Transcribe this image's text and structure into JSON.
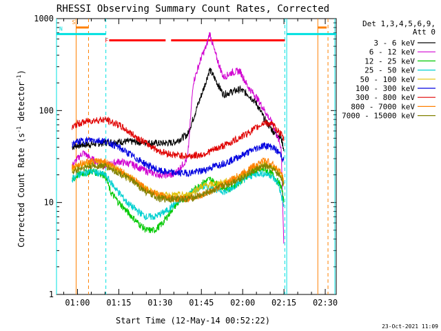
{
  "chart_data": {
    "type": "line",
    "title": "RHESSI Observing Summary Count Rates, Corrected",
    "xlabel": "Start Time (12-May-14 00:52:22)",
    "ylabel": "Corrected Count Rate (s",
    "ylabel_sup1": "-1",
    "ylabel_mid": " detector",
    "ylabel_sup2": "-1",
    "ylabel_end": ")",
    "y_scale": "log",
    "ylim": [
      1,
      1000
    ],
    "xlim_min": [
      52.37,
      154
    ],
    "x_tick_minutes": [
      60,
      75,
      90,
      105,
      120,
      135,
      150
    ],
    "x_tick_labels": [
      "01:00",
      "01:15",
      "01:30",
      "01:45",
      "02:00",
      "02:15",
      "02:30"
    ],
    "y_tick_values": [
      1,
      10,
      100,
      1000
    ],
    "y_tick_labels": [
      "1",
      "10",
      "100",
      "1000"
    ],
    "legend_header": [
      "Det 1,3,4,5,6,9,",
      "Att 0"
    ],
    "legend_placement": "right-outside",
    "series": [
      {
        "name": "3 - 6 keV",
        "color": "#000000",
        "points": [
          [
            58,
            40
          ],
          [
            60,
            42
          ],
          [
            65,
            43
          ],
          [
            70,
            45
          ],
          [
            75,
            46
          ],
          [
            80,
            46
          ],
          [
            85,
            45
          ],
          [
            90,
            44
          ],
          [
            95,
            45
          ],
          [
            100,
            55
          ],
          [
            103,
            100
          ],
          [
            106,
            180
          ],
          [
            108,
            280
          ],
          [
            110,
            220
          ],
          [
            113,
            150
          ],
          [
            116,
            160
          ],
          [
            119,
            170
          ],
          [
            122,
            150
          ],
          [
            125,
            120
          ],
          [
            128,
            80
          ],
          [
            131,
            60
          ],
          [
            134,
            50
          ],
          [
            135,
            38
          ]
        ]
      },
      {
        "name": "6 - 12 keV",
        "color": "#d000d0",
        "points": [
          [
            58,
            25
          ],
          [
            60,
            30
          ],
          [
            62,
            35
          ],
          [
            65,
            30
          ],
          [
            70,
            25
          ],
          [
            75,
            28
          ],
          [
            80,
            26
          ],
          [
            85,
            22
          ],
          [
            90,
            20
          ],
          [
            95,
            20
          ],
          [
            100,
            30
          ],
          [
            102,
            200
          ],
          [
            105,
            380
          ],
          [
            107,
            520
          ],
          [
            108,
            700
          ],
          [
            110,
            420
          ],
          [
            113,
            230
          ],
          [
            116,
            260
          ],
          [
            119,
            270
          ],
          [
            122,
            180
          ],
          [
            125,
            140
          ],
          [
            128,
            100
          ],
          [
            131,
            70
          ],
          [
            134,
            40
          ],
          [
            135,
            3
          ]
        ]
      },
      {
        "name": "12 - 25 keV",
        "color": "#00c800",
        "points": [
          [
            58,
            17
          ],
          [
            60,
            20
          ],
          [
            65,
            22
          ],
          [
            70,
            20
          ],
          [
            72,
            13
          ],
          [
            75,
            10
          ],
          [
            78,
            8
          ],
          [
            82,
            6
          ],
          [
            85,
            5
          ],
          [
            88,
            5
          ],
          [
            91,
            6
          ],
          [
            95,
            9
          ],
          [
            100,
            12
          ],
          [
            105,
            16
          ],
          [
            108,
            18
          ],
          [
            112,
            15
          ],
          [
            115,
            14
          ],
          [
            118,
            16
          ],
          [
            122,
            20
          ],
          [
            125,
            22
          ],
          [
            128,
            23
          ],
          [
            131,
            20
          ],
          [
            134,
            15
          ],
          [
            135,
            10
          ]
        ]
      },
      {
        "name": "25 - 50 keV",
        "color": "#00d0d0",
        "points": [
          [
            58,
            18
          ],
          [
            60,
            20
          ],
          [
            65,
            22
          ],
          [
            70,
            20
          ],
          [
            74,
            14
          ],
          [
            78,
            10
          ],
          [
            82,
            8
          ],
          [
            85,
            7
          ],
          [
            88,
            7
          ],
          [
            92,
            8
          ],
          [
            96,
            10
          ],
          [
            100,
            12
          ],
          [
            105,
            15
          ],
          [
            110,
            14
          ],
          [
            114,
            13
          ],
          [
            118,
            16
          ],
          [
            122,
            19
          ],
          [
            126,
            21
          ],
          [
            130,
            20
          ],
          [
            133,
            16
          ],
          [
            135,
            9
          ]
        ]
      },
      {
        "name": "50 - 100 keV",
        "color": "#e0c000",
        "points": [
          [
            58,
            22
          ],
          [
            60,
            25
          ],
          [
            65,
            27
          ],
          [
            70,
            27
          ],
          [
            75,
            22
          ],
          [
            80,
            18
          ],
          [
            85,
            14
          ],
          [
            90,
            12
          ],
          [
            95,
            12
          ],
          [
            100,
            12
          ],
          [
            105,
            15
          ],
          [
            110,
            16
          ],
          [
            115,
            17
          ],
          [
            120,
            20
          ],
          [
            125,
            24
          ],
          [
            128,
            26
          ],
          [
            131,
            24
          ],
          [
            134,
            20
          ],
          [
            135,
            16
          ]
        ]
      },
      {
        "name": "100 - 300 keV",
        "color": "#0000e0",
        "points": [
          [
            58,
            43
          ],
          [
            60,
            46
          ],
          [
            65,
            48
          ],
          [
            70,
            47
          ],
          [
            75,
            40
          ],
          [
            80,
            32
          ],
          [
            85,
            26
          ],
          [
            90,
            22
          ],
          [
            95,
            21
          ],
          [
            100,
            21
          ],
          [
            105,
            22
          ],
          [
            110,
            25
          ],
          [
            115,
            28
          ],
          [
            120,
            33
          ],
          [
            125,
            39
          ],
          [
            128,
            42
          ],
          [
            131,
            40
          ],
          [
            134,
            33
          ],
          [
            135,
            28
          ]
        ]
      },
      {
        "name": "300 - 800 keV",
        "color": "#e00000",
        "points": [
          [
            58,
            65
          ],
          [
            60,
            72
          ],
          [
            65,
            78
          ],
          [
            70,
            80
          ],
          [
            75,
            70
          ],
          [
            80,
            55
          ],
          [
            85,
            44
          ],
          [
            90,
            36
          ],
          [
            95,
            33
          ],
          [
            100,
            32
          ],
          [
            105,
            33
          ],
          [
            110,
            38
          ],
          [
            115,
            44
          ],
          [
            120,
            53
          ],
          [
            125,
            65
          ],
          [
            128,
            75
          ],
          [
            131,
            70
          ],
          [
            134,
            55
          ],
          [
            135,
            48
          ]
        ]
      },
      {
        "name": "800 - 7000 keV",
        "color": "#ff8000",
        "points": [
          [
            58,
            24
          ],
          [
            60,
            26
          ],
          [
            65,
            28
          ],
          [
            70,
            28
          ],
          [
            75,
            23
          ],
          [
            80,
            18
          ],
          [
            85,
            14
          ],
          [
            90,
            12
          ],
          [
            95,
            11
          ],
          [
            100,
            11
          ],
          [
            105,
            12
          ],
          [
            110,
            14
          ],
          [
            115,
            17
          ],
          [
            120,
            21
          ],
          [
            125,
            26
          ],
          [
            128,
            29
          ],
          [
            131,
            26
          ],
          [
            134,
            21
          ],
          [
            135,
            17
          ]
        ]
      },
      {
        "name": "7000 - 15000 keV",
        "color": "#808000",
        "points": [
          [
            58,
            21
          ],
          [
            60,
            23
          ],
          [
            65,
            25
          ],
          [
            70,
            25
          ],
          [
            75,
            21
          ],
          [
            80,
            17
          ],
          [
            85,
            13
          ],
          [
            90,
            11
          ],
          [
            95,
            11
          ],
          [
            100,
            11
          ],
          [
            105,
            12
          ],
          [
            110,
            14
          ],
          [
            115,
            16
          ],
          [
            120,
            19
          ],
          [
            125,
            23
          ],
          [
            128,
            25
          ],
          [
            131,
            23
          ],
          [
            134,
            19
          ],
          [
            135,
            15
          ]
        ]
      }
    ],
    "attenuator_vlines": [
      {
        "t": 52.37,
        "color": "#00e0e0",
        "style": "solid"
      },
      {
        "t": 136,
        "color": "#00e0e0",
        "style": "solid"
      },
      {
        "t": 153.5,
        "color": "#00e0e0",
        "style": "solid"
      }
    ],
    "saa_vlines": [
      {
        "t": 59.5,
        "color": "#ff8000",
        "style": "solid"
      },
      {
        "t": 64,
        "color": "#ff8000",
        "style": "dashed"
      },
      {
        "t": 147.3,
        "color": "#ff8000",
        "style": "solid"
      },
      {
        "t": 151,
        "color": "#ff8000",
        "style": "dashed"
      }
    ],
    "night_vlines": [
      {
        "t": 70.3,
        "color": "#00e0e0",
        "style": "dashed"
      },
      {
        "t": 135.3,
        "color": "#00e0e0",
        "style": "dashed"
      }
    ],
    "flag_bars": [
      {
        "label": "S",
        "color": "#ff8000",
        "t0": 59.5,
        "t1": 64,
        "level": 800
      },
      {
        "label": "",
        "color": "#ff8000",
        "t0": 147.3,
        "t1": 150.5,
        "level": 800
      },
      {
        "label": "N",
        "color": "#00e0e0",
        "t0": 52.37,
        "t1": 70.3,
        "level": 680
      },
      {
        "label": "",
        "color": "#00e0e0",
        "t0": 136,
        "t1": 154,
        "level": 680
      },
      {
        "label": "F",
        "color": "#ff0000",
        "t0": 71.5,
        "t1": 92,
        "level": 580
      },
      {
        "label": "",
        "color": "#ff0000",
        "t0": 94,
        "t1": 135.3,
        "level": 580
      }
    ],
    "footer_date": "23-Oct-2021 11:09"
  }
}
